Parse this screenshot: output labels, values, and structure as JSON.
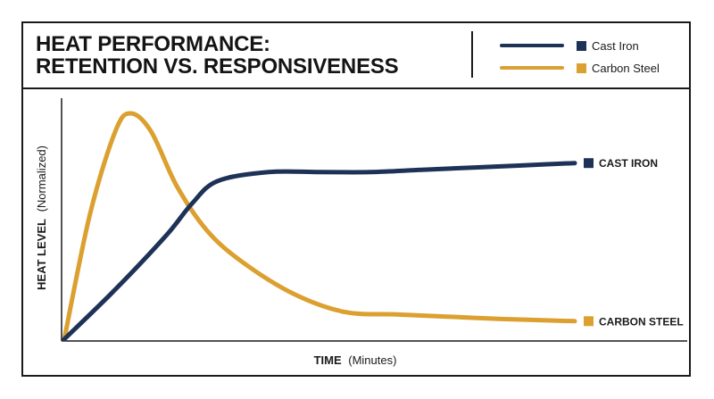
{
  "title_lines": [
    "HEAT PERFORMANCE:",
    "RETENTION VS. RESPONSIVENESS"
  ],
  "legend": [
    {
      "label": "Cast Iron",
      "color": "#1e3257"
    },
    {
      "label": "Carbon Steel",
      "color": "#dba030"
    }
  ],
  "chart_data": {
    "type": "line",
    "title": "HEAT PERFORMANCE: RETENTION VS. RESPONSIVENESS",
    "xlabel_bold": "TIME",
    "xlabel_rest": "(Minutes)",
    "ylabel_bold": "HEAT LEVEL",
    "ylabel_rest": "(Normalized)",
    "xlim": [
      0,
      100
    ],
    "ylim": [
      0,
      100
    ],
    "grid": false,
    "legend_position": "top-right",
    "series": [
      {
        "name": "Cast Iron",
        "end_label": "CAST IRON",
        "color": "#1e3257",
        "x": [
          0,
          10,
          20,
          25,
          30,
          40,
          50,
          60,
          70,
          80,
          90,
          100
        ],
        "y": [
          0,
          22,
          46,
          60,
          70,
          74,
          74,
          74,
          75,
          76,
          77,
          78
        ]
      },
      {
        "name": "Carbon Steel",
        "end_label": "CARBON STEEL",
        "color": "#dba030",
        "x": [
          0,
          5,
          10,
          13,
          17,
          22,
          28,
          35,
          45,
          55,
          65,
          75,
          85,
          100
        ],
        "y": [
          0,
          55,
          92,
          100,
          92,
          68,
          48,
          34,
          20,
          12,
          11,
          10,
          9,
          8
        ]
      }
    ]
  }
}
